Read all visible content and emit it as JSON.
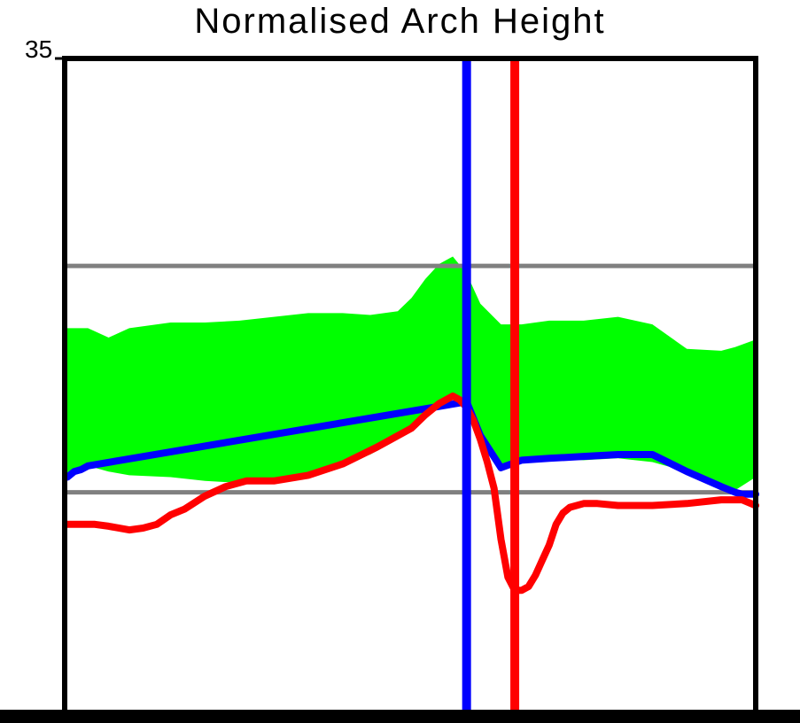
{
  "chart_data": {
    "type": "line",
    "title": "Normalised Arch Height",
    "ylim": [
      0,
      35
    ],
    "y_tick_labels": [
      "35"
    ],
    "xlim": [
      0,
      100
    ],
    "grid": false,
    "legend": "none",
    "reference_lines": [
      {
        "y": 24,
        "color": "#808080"
      },
      {
        "y": 12,
        "color": "#808080"
      }
    ],
    "vertical_markers": [
      {
        "x": 58,
        "color": "#0000ff"
      },
      {
        "x": 65,
        "color": "#ff0000"
      }
    ],
    "band": {
      "color": "#00ff00",
      "x": [
        0,
        3,
        6,
        9,
        15,
        20,
        25,
        30,
        35,
        40,
        44,
        48,
        50,
        52,
        54,
        56,
        58,
        60,
        63,
        66,
        70,
        75,
        80,
        85,
        90,
        95,
        97,
        100
      ],
      "upper": [
        20.7,
        20.7,
        20.2,
        20.7,
        21.0,
        21.0,
        21.1,
        21.3,
        21.5,
        21.5,
        21.4,
        21.6,
        22.3,
        23.3,
        24.1,
        24.5,
        23.6,
        22.0,
        20.9,
        20.9,
        21.1,
        21.1,
        21.3,
        20.9,
        19.6,
        19.5,
        19.7,
        20.1
      ],
      "lower": [
        13.0,
        13.4,
        13.1,
        12.9,
        12.8,
        12.6,
        12.5,
        12.7,
        13.0,
        13.5,
        14.0,
        14.8,
        15.6,
        16.1,
        16.8,
        17.2,
        16.8,
        15.0,
        13.3,
        13.7,
        13.8,
        13.7,
        13.8,
        13.6,
        13.1,
        12.3,
        12.1,
        12.8
      ]
    },
    "series": [
      {
        "color": "#0000ff",
        "x": [
          0,
          1,
          2,
          3,
          58,
          60,
          63,
          66,
          70,
          75,
          80,
          85,
          90,
          95,
          97,
          98,
          100
        ],
        "y": [
          12.8,
          13.1,
          13.2,
          13.4,
          16.8,
          15.0,
          13.3,
          13.7,
          13.8,
          13.9,
          14.0,
          14.0,
          13.1,
          12.3,
          12.0,
          11.9,
          11.9
        ]
      },
      {
        "color": "#ff0000",
        "x": [
          0,
          4,
          6,
          9,
          11,
          13,
          15,
          17,
          20,
          23,
          26,
          30,
          35,
          40,
          45,
          50,
          52,
          54,
          56,
          57,
          58,
          59,
          60,
          61,
          62,
          63,
          64,
          65,
          66,
          67,
          68,
          69,
          70,
          71,
          72,
          73,
          75,
          77,
          80,
          85,
          90,
          95,
          98,
          100
        ],
        "y": [
          10.3,
          10.3,
          10.2,
          10.0,
          10.1,
          10.3,
          10.8,
          11.1,
          11.8,
          12.3,
          12.6,
          12.6,
          12.9,
          13.5,
          14.4,
          15.4,
          16.1,
          16.7,
          17.1,
          16.9,
          16.5,
          15.8,
          14.8,
          13.6,
          12.2,
          9.5,
          7.5,
          6.8,
          6.8,
          7.0,
          7.6,
          8.4,
          9.2,
          10.3,
          10.9,
          11.2,
          11.4,
          11.4,
          11.3,
          11.3,
          11.4,
          11.6,
          11.6,
          11.3
        ]
      }
    ]
  }
}
